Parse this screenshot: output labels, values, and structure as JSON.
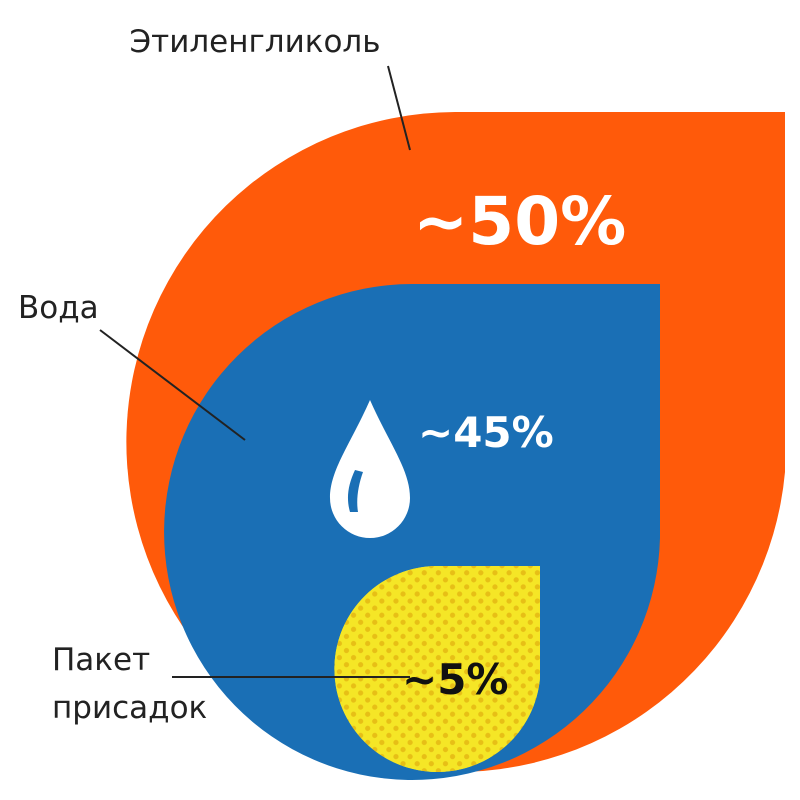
{
  "chart_data": {
    "type": "pie",
    "style": "nested-drops",
    "unit": "%",
    "segments": [
      {
        "label": "Этиленгликоль",
        "value": 50,
        "value_label": "~50%",
        "color": "#ff5a0a"
      },
      {
        "label": "Вода",
        "value": 45,
        "value_label": "~45%",
        "color": "#1a6fb5"
      },
      {
        "label": "Пакет присадок",
        "label_lines": [
          "Пакет",
          "присадок"
        ],
        "value": 5,
        "value_label": "~5%",
        "color": "#f5e626"
      }
    ],
    "text_color_light": "#ffffff",
    "text_color_dark": "#111111",
    "callout_color": "#222222",
    "water_icon": "water-drop-icon"
  }
}
